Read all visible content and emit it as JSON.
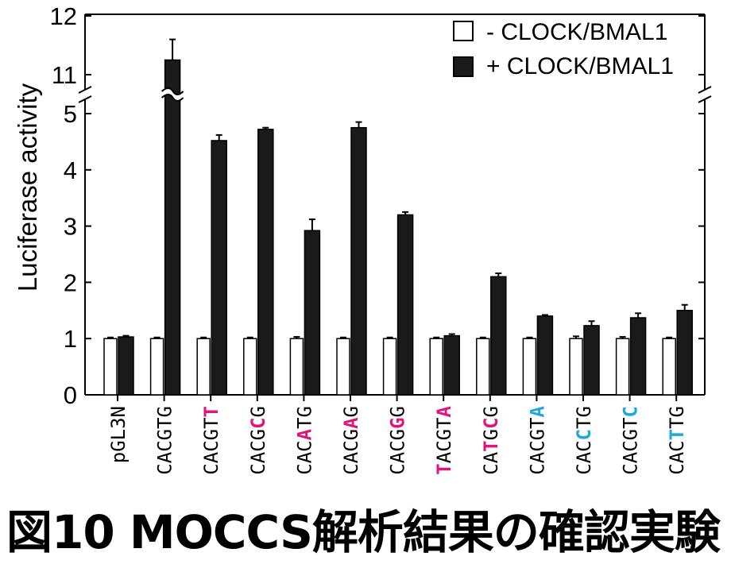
{
  "chart_data": {
    "type": "bar",
    "title": "",
    "xlabel": "",
    "ylabel": "Luciferase activity",
    "ylim": [
      0,
      12
    ],
    "axis_break": [
      5,
      11
    ],
    "yticks": [
      "0",
      "1",
      "2",
      "3",
      "4",
      "5",
      "11",
      "12"
    ],
    "legend_position": "top-right",
    "categories": [
      [
        {
          "t": "pGL3N",
          "m": 0
        }
      ],
      [
        {
          "t": "CACGTG",
          "m": 0
        }
      ],
      [
        {
          "t": "CACGT",
          "m": 0
        },
        {
          "t": "T",
          "m": 1
        }
      ],
      [
        {
          "t": "CACG",
          "m": 0
        },
        {
          "t": "C",
          "m": 1
        },
        {
          "t": "G",
          "m": 0
        }
      ],
      [
        {
          "t": "CAC",
          "m": 0
        },
        {
          "t": "A",
          "m": 1
        },
        {
          "t": "TG",
          "m": 0
        }
      ],
      [
        {
          "t": "CACG",
          "m": 0
        },
        {
          "t": "A",
          "m": 1
        },
        {
          "t": "G",
          "m": 0
        }
      ],
      [
        {
          "t": "CACG",
          "m": 0
        },
        {
          "t": "G",
          "m": 1
        },
        {
          "t": "G",
          "m": 0
        }
      ],
      [
        {
          "t": "T",
          "m": 1
        },
        {
          "t": "ACGT",
          "m": 0
        },
        {
          "t": "A",
          "m": 1
        }
      ],
      [
        {
          "t": "CA",
          "m": 0
        },
        {
          "t": "T",
          "m": 1
        },
        {
          "t": "G",
          "m": 0
        },
        {
          "t": "C",
          "m": 1
        },
        {
          "t": "G",
          "m": 0
        }
      ],
      [
        {
          "t": "CACGT",
          "m": 0
        },
        {
          "t": "A",
          "m": 2
        }
      ],
      [
        {
          "t": "CAC",
          "m": 0
        },
        {
          "t": "C",
          "m": 2
        },
        {
          "t": "TG",
          "m": 0
        }
      ],
      [
        {
          "t": "CACGT",
          "m": 0
        },
        {
          "t": "C",
          "m": 2
        }
      ],
      [
        {
          "t": "CAC",
          "m": 0
        },
        {
          "t": "T",
          "m": 2
        },
        {
          "t": "TG",
          "m": 0
        }
      ]
    ],
    "mark_colors": [
      "#000000",
      "#e0157c",
      "#1ea8dc"
    ],
    "series": [
      {
        "name": "- CLOCK/BMAL1",
        "color": "#ffffff",
        "values": [
          1.0,
          1.0,
          1.0,
          1.0,
          1.0,
          1.0,
          1.0,
          1.0,
          1.0,
          1.0,
          1.0,
          1.0,
          1.0
        ],
        "errors": [
          0.02,
          0.02,
          0.02,
          0.02,
          0.03,
          0.02,
          0.02,
          0.02,
          0.02,
          0.02,
          0.04,
          0.03,
          0.02
        ]
      },
      {
        "name": "+ CLOCK/BMAL1",
        "color": "#1a1a1a",
        "values": [
          1.03,
          11.25,
          4.52,
          4.72,
          2.92,
          4.75,
          3.2,
          1.05,
          2.1,
          1.4,
          1.23,
          1.37,
          1.5
        ],
        "errors": [
          0.02,
          0.35,
          0.1,
          0.03,
          0.2,
          0.1,
          0.05,
          0.03,
          0.06,
          0.02,
          0.08,
          0.08,
          0.1
        ]
      }
    ]
  },
  "caption": "図10 MOCCS解析結果の確認実験"
}
